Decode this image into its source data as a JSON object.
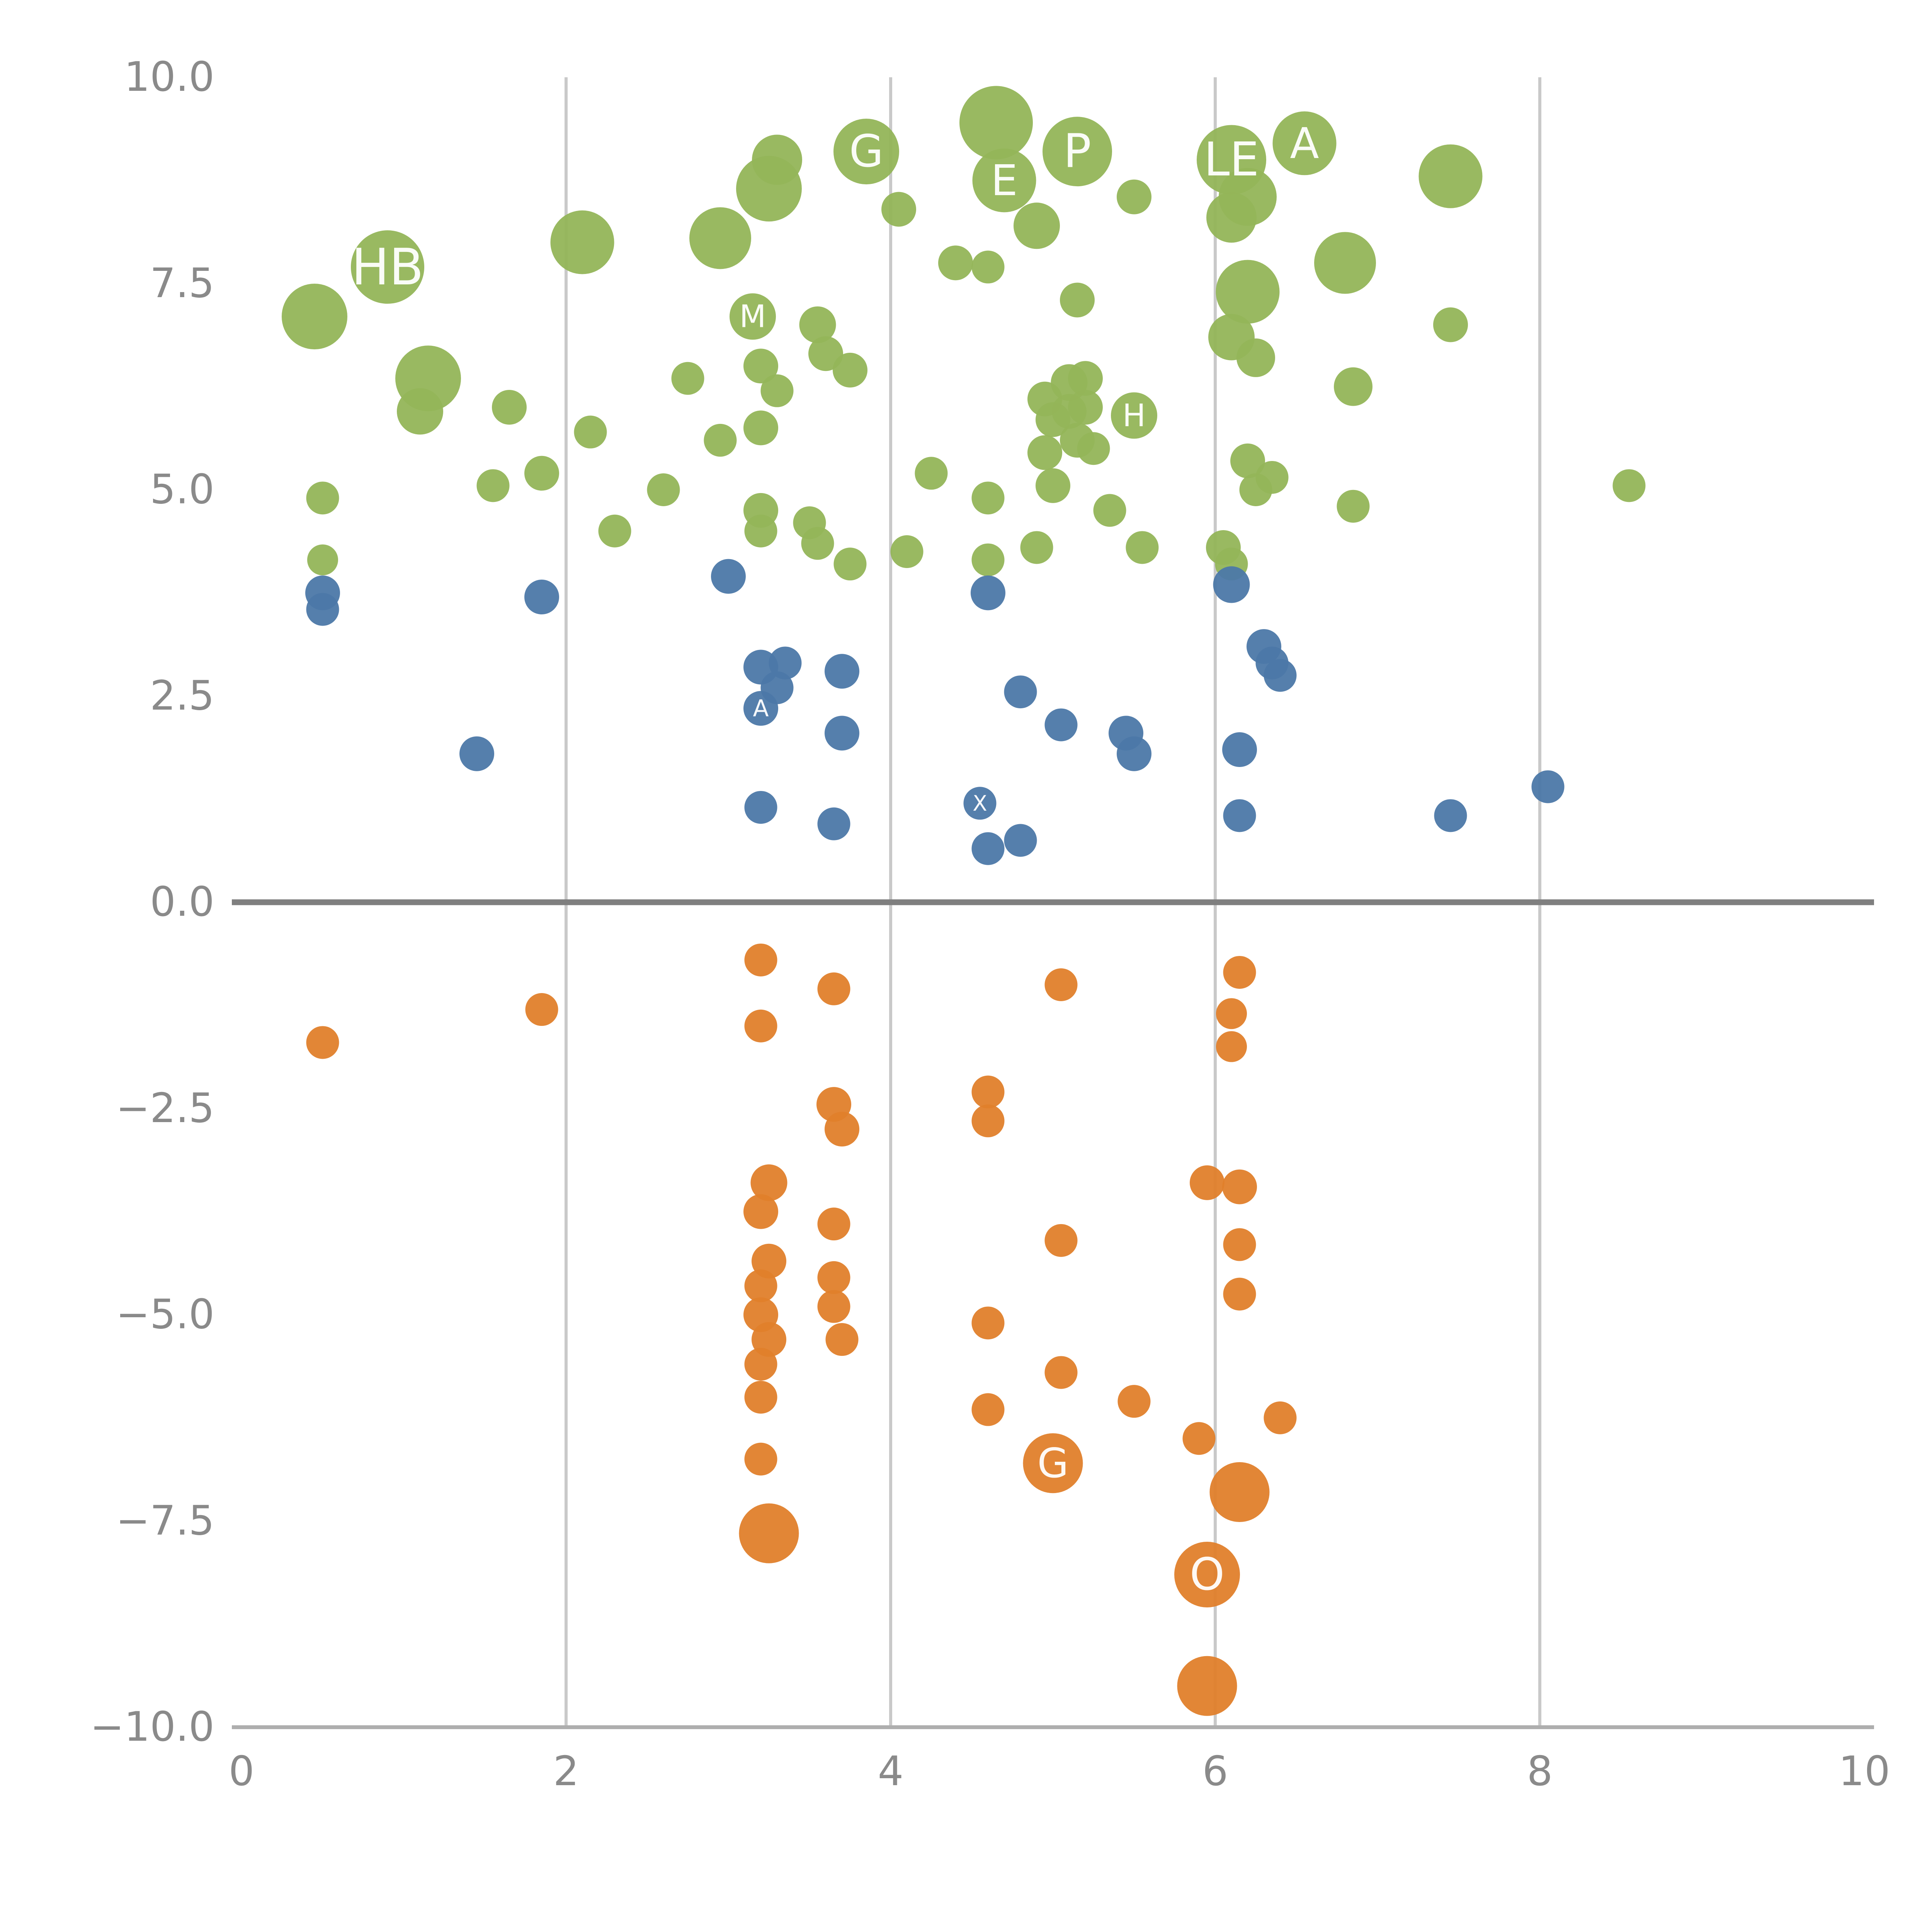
{
  "figure": {
    "background": "#ffffff",
    "grid_color": "#c9c9c9",
    "zero_line_color": "#7f7f7f",
    "axis_line_color": "#aeaeae",
    "tick_label_color": "#8a8a8a"
  },
  "chart_data": {
    "type": "scatter",
    "title": "",
    "xlabel": "",
    "ylabel": "",
    "xlim": [
      0,
      10
    ],
    "ylim": [
      -10,
      10
    ],
    "grid": "vertical-only",
    "legend": "none",
    "x_ticks": [
      {
        "v": 0,
        "label": "0"
      },
      {
        "v": 2,
        "label": "2"
      },
      {
        "v": 4,
        "label": "4"
      },
      {
        "v": 6,
        "label": "6"
      },
      {
        "v": 8,
        "label": "8"
      },
      {
        "v": 10,
        "label": "10"
      }
    ],
    "y_ticks": [
      {
        "v": 10,
        "label": "10.0"
      },
      {
        "v": 7.5,
        "label": "7.5"
      },
      {
        "v": 5,
        "label": "5.0"
      },
      {
        "v": 2.5,
        "label": "2.5"
      },
      {
        "v": 0,
        "label": "0.0"
      },
      {
        "v": -2.5,
        "label": "−2.5"
      },
      {
        "v": -5,
        "label": "−5.0"
      },
      {
        "v": -7.5,
        "label": "−7.5"
      },
      {
        "v": -10,
        "label": "−10.0"
      }
    ],
    "gridline_x_values": [
      2,
      4,
      6,
      8
    ],
    "zero_line_y": 0,
    "series": [
      {
        "name": "green-bubbles",
        "color": "#93b558",
        "points": [
          [
            0.45,
            7.1,
            17
          ],
          [
            0.9,
            7.7,
            19,
            "HB"
          ],
          [
            1.15,
            6.35,
            17
          ],
          [
            1.1,
            5.95,
            12
          ],
          [
            1.65,
            6.0,
            9
          ],
          [
            1.55,
            5.05,
            8.5
          ],
          [
            1.85,
            5.2,
            9
          ],
          [
            2.1,
            8.0,
            16.5
          ],
          [
            2.15,
            5.7,
            8.5
          ],
          [
            0.5,
            4.9,
            8.5
          ],
          [
            0.5,
            4.15,
            8
          ],
          [
            2.3,
            4.5,
            8.5
          ],
          [
            2.6,
            5.0,
            8.5
          ],
          [
            2.75,
            6.35,
            8.5
          ],
          [
            2.95,
            8.05,
            16
          ],
          [
            3.25,
            8.65,
            17
          ],
          [
            3.3,
            9.0,
            13
          ],
          [
            3.15,
            7.1,
            12,
            "M"
          ],
          [
            3.2,
            6.5,
            9
          ],
          [
            3.3,
            6.2,
            8.5
          ],
          [
            3.2,
            5.75,
            9
          ],
          [
            2.95,
            5.6,
            8.5
          ],
          [
            3.55,
            7.0,
            9.5
          ],
          [
            3.6,
            6.65,
            9
          ],
          [
            3.75,
            6.45,
            9
          ],
          [
            3.2,
            4.75,
            9
          ],
          [
            3.2,
            4.5,
            8.5
          ],
          [
            3.5,
            4.6,
            8.5
          ],
          [
            3.55,
            4.35,
            8.5
          ],
          [
            3.75,
            4.1,
            8.5
          ],
          [
            3.85,
            9.1,
            17,
            "G"
          ],
          [
            4.05,
            8.4,
            9
          ],
          [
            4.25,
            5.2,
            8.5
          ],
          [
            4.1,
            4.25,
            8.5
          ],
          [
            4.4,
            7.75,
            9
          ],
          [
            4.6,
            7.7,
            8.5
          ],
          [
            4.65,
            9.45,
            19
          ],
          [
            4.7,
            8.75,
            16.5,
            "E"
          ],
          [
            4.9,
            8.2,
            12
          ],
          [
            5.15,
            9.1,
            18,
            "P"
          ],
          [
            4.95,
            5.45,
            9
          ],
          [
            5.0,
            5.05,
            9
          ],
          [
            4.6,
            4.9,
            8.5
          ],
          [
            4.6,
            4.15,
            8.5
          ],
          [
            4.9,
            4.3,
            8.5
          ],
          [
            5.15,
            7.3,
            9
          ],
          [
            4.95,
            6.1,
            9
          ],
          [
            5.1,
            6.3,
            9.5
          ],
          [
            5.2,
            6.35,
            9
          ],
          [
            5.0,
            5.85,
            9
          ],
          [
            5.1,
            5.95,
            9
          ],
          [
            5.2,
            6.0,
            9
          ],
          [
            5.15,
            5.6,
            9
          ],
          [
            5.25,
            5.5,
            8.5
          ],
          [
            5.35,
            4.75,
            8.5
          ],
          [
            5.5,
            5.9,
            12,
            "H"
          ],
          [
            5.5,
            8.55,
            9
          ],
          [
            5.55,
            4.3,
            8.5
          ],
          [
            6.1,
            9.0,
            18,
            "LE"
          ],
          [
            6.2,
            8.55,
            15
          ],
          [
            6.1,
            8.3,
            13
          ],
          [
            6.55,
            9.2,
            16.5,
            "A"
          ],
          [
            6.2,
            7.4,
            16.5
          ],
          [
            6.1,
            6.85,
            12
          ],
          [
            6.25,
            6.6,
            10
          ],
          [
            6.8,
            7.75,
            16
          ],
          [
            6.85,
            6.25,
            10
          ],
          [
            6.2,
            5.35,
            9
          ],
          [
            6.25,
            5.0,
            8.5
          ],
          [
            6.35,
            5.15,
            8.5
          ],
          [
            6.05,
            4.3,
            9
          ],
          [
            6.1,
            4.1,
            8.5
          ],
          [
            6.85,
            4.8,
            8.5
          ],
          [
            7.45,
            8.8,
            16.5
          ],
          [
            7.45,
            7.0,
            9
          ],
          [
            8.55,
            5.05,
            8.5
          ]
        ]
      },
      {
        "name": "blue-bubbles",
        "color": "#4c78a8",
        "points": [
          [
            0.5,
            3.75,
            9
          ],
          [
            0.5,
            3.55,
            8.5
          ],
          [
            1.45,
            1.8,
            9
          ],
          [
            1.85,
            3.7,
            9
          ],
          [
            3.0,
            3.95,
            9
          ],
          [
            3.2,
            2.85,
            9
          ],
          [
            3.35,
            2.9,
            8.5
          ],
          [
            3.3,
            2.6,
            8.5
          ],
          [
            3.2,
            2.35,
            9,
            "A"
          ],
          [
            3.7,
            2.8,
            9
          ],
          [
            3.7,
            2.05,
            9
          ],
          [
            3.2,
            1.15,
            8.5
          ],
          [
            3.65,
            0.95,
            8.5
          ],
          [
            4.6,
            3.75,
            9
          ],
          [
            4.55,
            1.2,
            8.5,
            "X"
          ],
          [
            4.6,
            0.65,
            8.5
          ],
          [
            4.8,
            0.75,
            8.5
          ],
          [
            4.8,
            2.55,
            8.5
          ],
          [
            5.05,
            2.15,
            8.5
          ],
          [
            5.45,
            2.05,
            9
          ],
          [
            5.5,
            1.8,
            9
          ],
          [
            6.1,
            3.85,
            9.5
          ],
          [
            6.3,
            3.1,
            9
          ],
          [
            6.35,
            2.9,
            8.5
          ],
          [
            6.4,
            2.75,
            8.5
          ],
          [
            6.15,
            1.85,
            9
          ],
          [
            6.15,
            1.05,
            8.5
          ],
          [
            7.45,
            1.05,
            8.5
          ],
          [
            8.05,
            1.4,
            8.5
          ]
        ]
      },
      {
        "name": "orange-bubbles",
        "color": "#e0802b",
        "points": [
          [
            0.5,
            -1.7,
            8.5
          ],
          [
            1.85,
            -1.3,
            8.5
          ],
          [
            3.2,
            -0.7,
            8.5
          ],
          [
            3.2,
            -1.5,
            8.5
          ],
          [
            3.65,
            -1.05,
            8.5
          ],
          [
            3.65,
            -2.45,
            9
          ],
          [
            3.7,
            -2.75,
            9
          ],
          [
            3.25,
            -3.4,
            9.5
          ],
          [
            3.2,
            -3.75,
            9
          ],
          [
            3.65,
            -3.9,
            8.5
          ],
          [
            3.25,
            -4.35,
            9
          ],
          [
            3.2,
            -4.65,
            8.5
          ],
          [
            3.65,
            -4.55,
            8.5
          ],
          [
            3.65,
            -4.9,
            8.5
          ],
          [
            3.2,
            -5.0,
            9
          ],
          [
            3.25,
            -5.3,
            9
          ],
          [
            3.7,
            -5.3,
            8.5
          ],
          [
            3.2,
            -5.6,
            8.5
          ],
          [
            3.2,
            -6.0,
            8.5
          ],
          [
            3.2,
            -6.75,
            8.5
          ],
          [
            3.25,
            -7.65,
            15.5
          ],
          [
            4.6,
            -2.3,
            8.5
          ],
          [
            4.6,
            -2.65,
            8.5
          ],
          [
            4.6,
            -5.1,
            8.5
          ],
          [
            4.6,
            -6.15,
            8.5
          ],
          [
            5.05,
            -1.0,
            8.5
          ],
          [
            5.05,
            -4.1,
            8.5
          ],
          [
            5.05,
            -5.7,
            8.5
          ],
          [
            5.0,
            -6.8,
            15.5,
            "G"
          ],
          [
            5.5,
            -6.05,
            8.5
          ],
          [
            5.95,
            -3.4,
            9
          ],
          [
            6.15,
            -3.45,
            9
          ],
          [
            6.15,
            -0.85,
            8.5
          ],
          [
            6.1,
            -1.35,
            8
          ],
          [
            6.1,
            -1.75,
            8
          ],
          [
            6.15,
            -4.15,
            8.5
          ],
          [
            6.15,
            -4.75,
            8.5
          ],
          [
            5.9,
            -6.5,
            8.5
          ],
          [
            6.15,
            -7.15,
            15.5
          ],
          [
            5.95,
            -8.15,
            17,
            "O"
          ],
          [
            5.95,
            -9.5,
            15.5
          ],
          [
            6.4,
            -6.25,
            8.5
          ]
        ]
      }
    ]
  }
}
